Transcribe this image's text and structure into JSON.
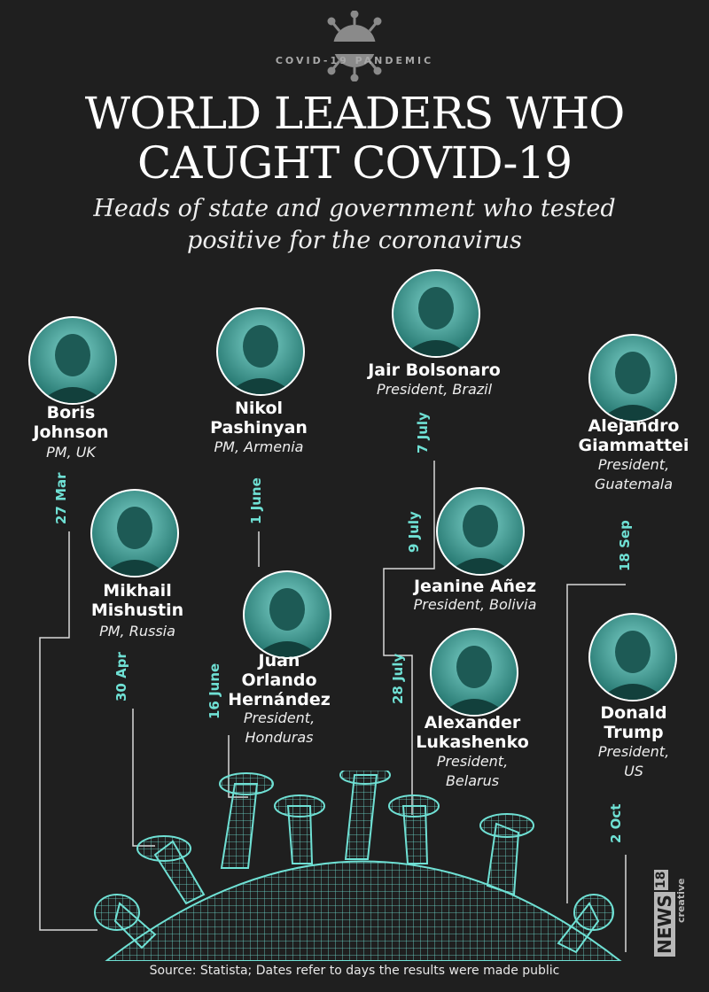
{
  "badge": "COVID-19 PANDEMIC",
  "title_line1": "WORLD LEADERS WHO",
  "title_line2": "CAUGHT COVID-19",
  "subtitle_line1": "Heads of state and government who tested",
  "subtitle_line2": "positive for the coronavirus",
  "leaders": [
    {
      "name1": "Boris",
      "name2": "Johnson",
      "role1": "PM, UK",
      "date": "27 Mar"
    },
    {
      "name1": "Mikhail",
      "name2": "Mishustin",
      "role1": "PM, Russia",
      "date": "30 Apr"
    },
    {
      "name1": "Nikol",
      "name2": "Pashinyan",
      "role1": "PM, Armenia",
      "date": "1 June"
    },
    {
      "name1": "Juan",
      "name2": "Orlando",
      "name3": "Hernández",
      "role1": "President,",
      "role2": "Honduras",
      "date": "16 June"
    },
    {
      "name1": "Jair Bolsonaro",
      "role1": "President, Brazil",
      "date": "7 July"
    },
    {
      "name1": "Jeanine Añez",
      "role1": "President, Bolivia",
      "date": "9 July"
    },
    {
      "name1": "Alexander",
      "name2": "Lukashenko",
      "role1": "President,",
      "role2": "Belarus",
      "date": "28 July"
    },
    {
      "name1": "Alejandro",
      "name2": "Giammattei",
      "role1": "President,",
      "role2": "Guatemala",
      "date": "18 Sep"
    },
    {
      "name1": "Donald",
      "name2": "Trump",
      "role1": "President,",
      "role2": "US",
      "date": "2 Oct"
    }
  ],
  "source": "Source: Statista; Dates refer to days the results were made public",
  "logo": {
    "brand": "NEWS",
    "number": "18",
    "sub": "creative"
  },
  "colors": {
    "background": "#1f1f1f",
    "accent": "#6fe0d4",
    "text": "#ffffff"
  }
}
